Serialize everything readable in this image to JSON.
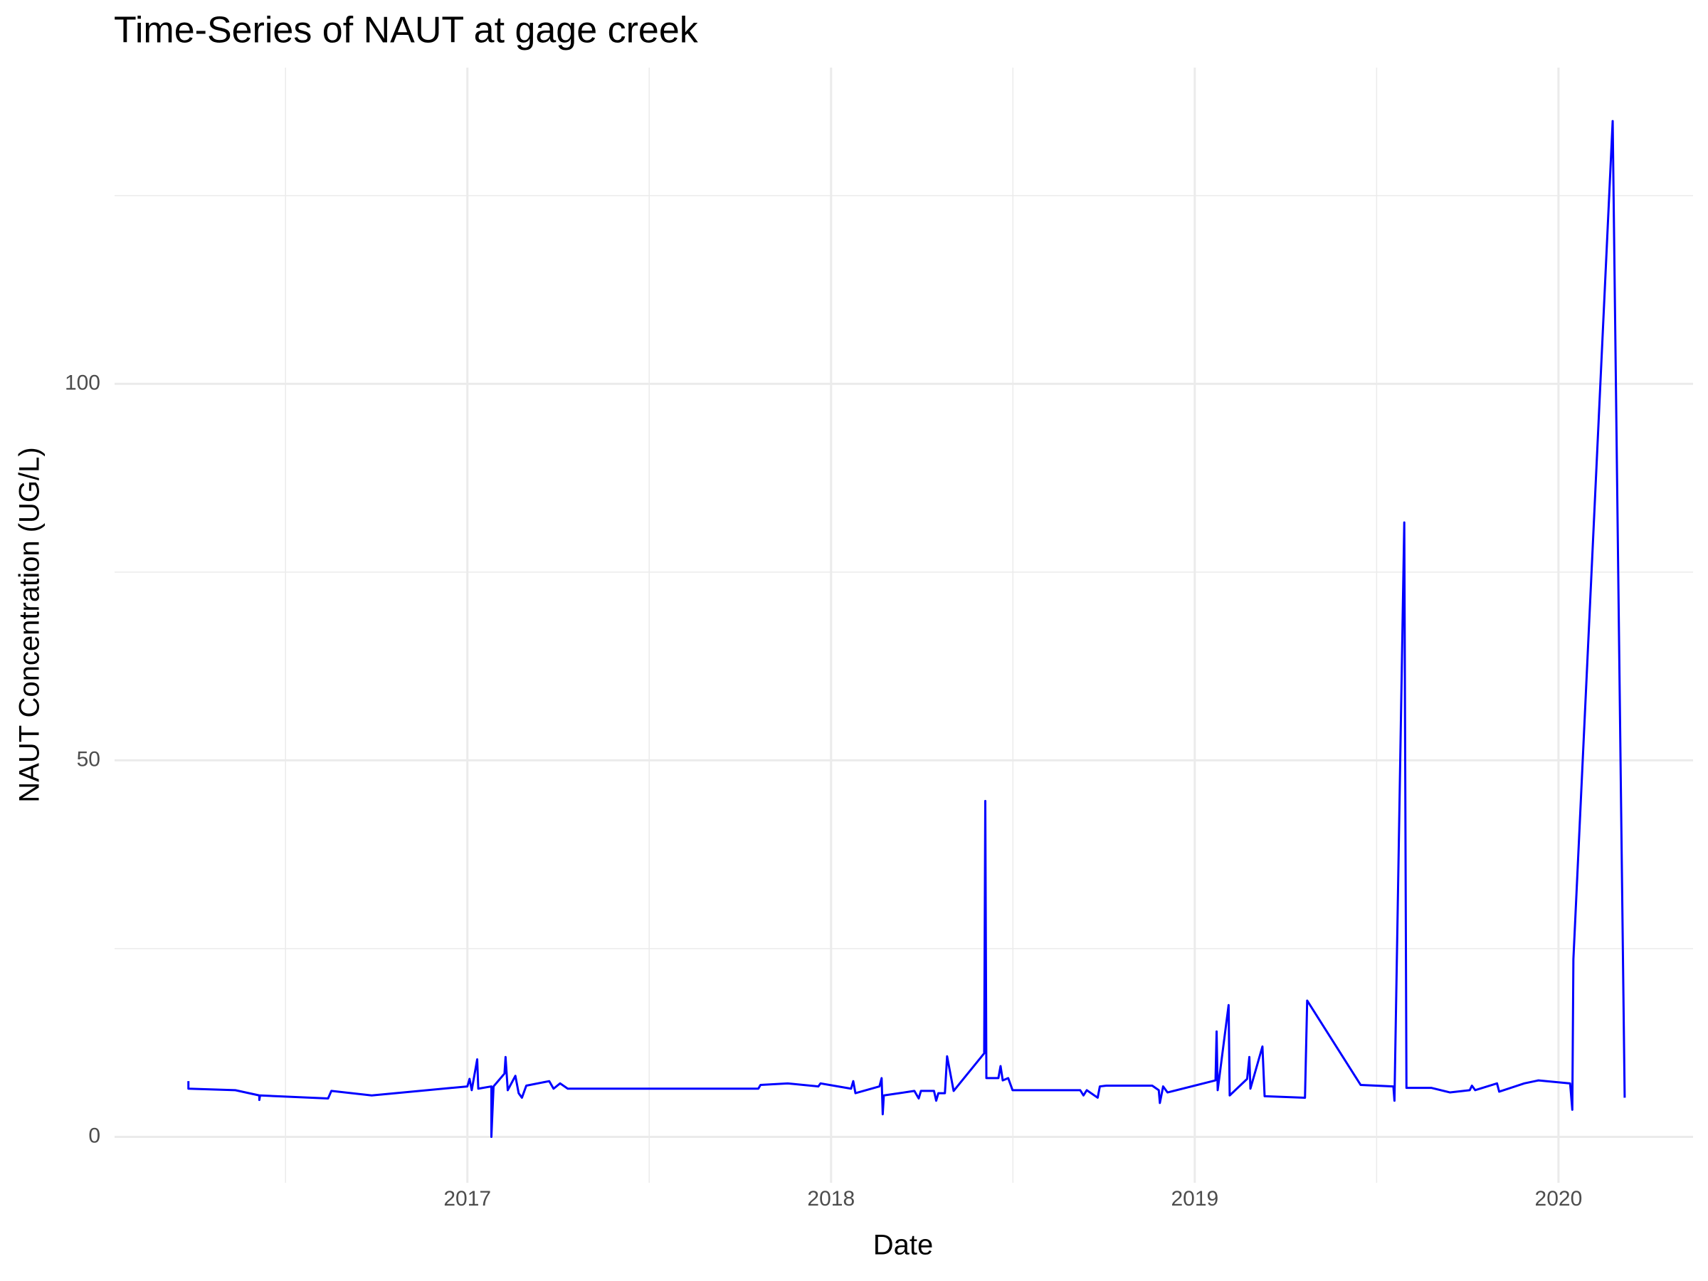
{
  "chart_data": {
    "type": "line",
    "title": "Time-Series of NAUT at gage creek",
    "x_label": "Date",
    "y_label": "NAUT Concentration (UG/L)",
    "color": "#0000ff",
    "x": [
      2016.233,
      2016.233,
      2016.362,
      2016.428,
      2016.428,
      2016.43,
      2016.617,
      2016.626,
      2016.737,
      2017.0,
      2017.006,
      2017.012,
      2017.027,
      2017.03,
      2017.066,
      2017.066,
      2017.072,
      2017.102,
      2017.105,
      2017.111,
      2017.132,
      2017.141,
      2017.15,
      2017.162,
      2017.225,
      2017.237,
      2017.255,
      2017.276,
      2017.8,
      2017.806,
      2017.881,
      2017.965,
      2017.971,
      2018.055,
      2018.061,
      2018.067,
      2018.133,
      2018.139,
      2018.142,
      2018.145,
      2018.229,
      2018.241,
      2018.247,
      2018.283,
      2018.289,
      2018.295,
      2018.313,
      2018.319,
      2018.337,
      2018.421,
      2018.424,
      2018.427,
      2018.46,
      2018.466,
      2018.472,
      2018.487,
      2018.499,
      2018.685,
      2018.694,
      2018.703,
      2018.733,
      2018.739,
      2018.757,
      2018.883,
      2018.901,
      2018.904,
      2018.913,
      2018.925,
      2019.057,
      2019.06,
      2019.063,
      2019.093,
      2019.096,
      2019.144,
      2019.15,
      2019.153,
      2019.186,
      2019.192,
      2019.303,
      2019.309,
      2019.456,
      2019.546,
      2019.549,
      2019.576,
      2019.582,
      2019.651,
      2019.702,
      2019.756,
      2019.762,
      2019.771,
      2019.831,
      2019.837,
      2019.906,
      2019.945,
      2020.032,
      2020.038,
      2020.041,
      2020.149,
      2020.182
    ],
    "values": [
      7.4,
      6.4,
      6.2,
      5.5,
      4.9,
      5.5,
      5.1,
      6.1,
      5.5,
      6.7,
      7.7,
      6.2,
      10.3,
      6.4,
      6.7,
      0,
      6.7,
      8.4,
      10.6,
      6.2,
      8.1,
      5.8,
      5.2,
      6.8,
      7.4,
      6.4,
      7.1,
      6.4,
      6.4,
      6.9,
      7.1,
      6.7,
      7.1,
      6.4,
      7.4,
      5.8,
      6.7,
      7.8,
      3.0,
      5.5,
      6.1,
      5.1,
      6.1,
      6.1,
      4.8,
      5.8,
      5.8,
      10.7,
      6.1,
      11.1,
      44.6,
      7.8,
      7.8,
      9.4,
      7.5,
      7.8,
      6.2,
      6.2,
      5.5,
      6.2,
      5.2,
      6.7,
      6.8,
      6.8,
      6.2,
      4.5,
      6.7,
      5.9,
      7.5,
      14.0,
      6.2,
      17.5,
      5.5,
      7.7,
      10.6,
      6.4,
      12.0,
      5.4,
      5.2,
      18.1,
      6.9,
      6.7,
      4.8,
      81.6,
      6.5,
      6.5,
      5.9,
      6.2,
      6.8,
      6.2,
      7.1,
      6.0,
      7.1,
      7.5,
      7.1,
      3.6,
      23.6,
      134.9,
      5.2
    ],
    "xlim": [
      2016.03,
      2020.37
    ],
    "ylim": [
      -6.1,
      142
    ],
    "xticks": [
      2017,
      2018,
      2019,
      2020
    ],
    "yticks": [
      0,
      50,
      100
    ],
    "grid": true
  }
}
